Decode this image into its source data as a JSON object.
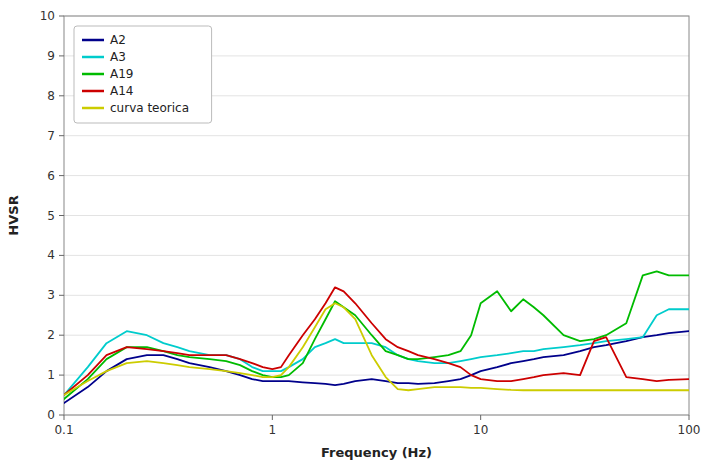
{
  "chart_data": {
    "type": "line",
    "xlabel": "Frequency (Hz)",
    "ylabel": "HVSR",
    "log": "x",
    "xlim": [
      0.1,
      100
    ],
    "ylim": [
      0,
      10
    ],
    "xticks": [
      0.1,
      1,
      10,
      100
    ],
    "yticks": [
      0,
      1,
      2,
      3,
      4,
      5,
      6,
      7,
      8,
      9,
      10
    ],
    "grid": true,
    "legend": "upper left",
    "x": [
      0.1,
      0.13,
      0.16,
      0.2,
      0.25,
      0.3,
      0.35,
      0.4,
      0.5,
      0.6,
      0.7,
      0.8,
      0.9,
      1.0,
      1.1,
      1.2,
      1.4,
      1.6,
      1.8,
      2.0,
      2.2,
      2.5,
      3.0,
      3.5,
      4.0,
      4.5,
      5.0,
      6.0,
      7.0,
      8.0,
      9.0,
      10.0,
      12.0,
      14.0,
      16.0,
      18.0,
      20.0,
      25.0,
      30.0,
      35.0,
      40.0,
      50.0,
      60.0,
      70.0,
      80.0,
      100.0
    ],
    "series": [
      {
        "name": "A2",
        "color": "#00008B",
        "values": [
          0.3,
          0.7,
          1.1,
          1.4,
          1.5,
          1.5,
          1.4,
          1.3,
          1.2,
          1.1,
          1.0,
          0.9,
          0.85,
          0.85,
          0.85,
          0.85,
          0.82,
          0.8,
          0.78,
          0.75,
          0.78,
          0.85,
          0.9,
          0.85,
          0.8,
          0.8,
          0.78,
          0.8,
          0.85,
          0.9,
          1.0,
          1.1,
          1.2,
          1.3,
          1.35,
          1.4,
          1.45,
          1.5,
          1.6,
          1.7,
          1.75,
          1.85,
          1.95,
          2.0,
          2.05,
          2.1
        ]
      },
      {
        "name": "A3",
        "color": "#00CCCC",
        "values": [
          0.5,
          1.2,
          1.8,
          2.1,
          2.0,
          1.8,
          1.7,
          1.6,
          1.5,
          1.5,
          1.4,
          1.2,
          1.1,
          1.1,
          1.1,
          1.2,
          1.4,
          1.7,
          1.8,
          1.9,
          1.8,
          1.8,
          1.8,
          1.7,
          1.5,
          1.4,
          1.35,
          1.3,
          1.3,
          1.35,
          1.4,
          1.45,
          1.5,
          1.55,
          1.6,
          1.6,
          1.65,
          1.7,
          1.75,
          1.8,
          1.85,
          1.9,
          1.95,
          2.5,
          2.65,
          2.65
        ]
      },
      {
        "name": "A19",
        "color": "#00BB00",
        "values": [
          0.4,
          0.9,
          1.4,
          1.7,
          1.7,
          1.6,
          1.5,
          1.45,
          1.4,
          1.35,
          1.25,
          1.1,
          1.0,
          0.95,
          0.95,
          1.0,
          1.3,
          1.9,
          2.4,
          2.85,
          2.7,
          2.5,
          2.0,
          1.6,
          1.5,
          1.4,
          1.4,
          1.45,
          1.5,
          1.6,
          2.0,
          2.8,
          3.1,
          2.6,
          2.9,
          2.7,
          2.5,
          2.0,
          1.85,
          1.9,
          2.0,
          2.3,
          3.5,
          3.6,
          3.5,
          3.5
        ]
      },
      {
        "name": "A14",
        "color": "#CC0000",
        "values": [
          0.5,
          1.0,
          1.5,
          1.7,
          1.65,
          1.6,
          1.55,
          1.5,
          1.5,
          1.5,
          1.4,
          1.3,
          1.2,
          1.15,
          1.2,
          1.5,
          2.0,
          2.4,
          2.8,
          3.2,
          3.1,
          2.8,
          2.3,
          1.9,
          1.7,
          1.6,
          1.5,
          1.4,
          1.3,
          1.2,
          1.0,
          0.9,
          0.85,
          0.85,
          0.9,
          0.95,
          1.0,
          1.05,
          1.0,
          1.85,
          1.95,
          0.95,
          0.9,
          0.85,
          0.88,
          0.9
        ]
      },
      {
        "name": "curva teorica",
        "color": "#CCCC00",
        "values": [
          0.5,
          0.85,
          1.1,
          1.3,
          1.35,
          1.3,
          1.25,
          1.2,
          1.15,
          1.1,
          1.05,
          1.0,
          0.95,
          0.95,
          1.0,
          1.2,
          1.7,
          2.2,
          2.65,
          2.8,
          2.7,
          2.4,
          1.5,
          0.95,
          0.65,
          0.62,
          0.65,
          0.7,
          0.7,
          0.7,
          0.68,
          0.68,
          0.65,
          0.63,
          0.62,
          0.62,
          0.62,
          0.62,
          0.62,
          0.62,
          0.62,
          0.62,
          0.62,
          0.62,
          0.62,
          0.62
        ]
      }
    ]
  }
}
